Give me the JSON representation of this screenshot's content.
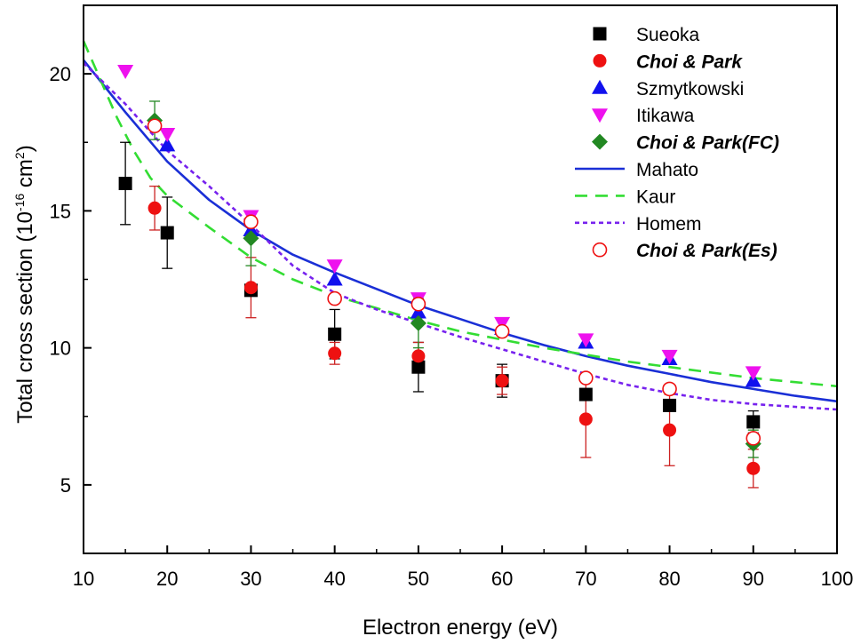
{
  "chart_data": {
    "type": "scatter",
    "title": "",
    "xlabel": "Electron energy (eV)",
    "ylabel_parts": {
      "main": "Total cross section (10",
      "exp1": "-16",
      "mid": " cm",
      "exp2": "2",
      "end": ")"
    },
    "xlim": [
      10,
      100
    ],
    "ylim": [
      2.5,
      22.5
    ],
    "xticks": [
      10,
      20,
      30,
      40,
      50,
      60,
      70,
      80,
      90,
      100
    ],
    "yticks": [
      5,
      10,
      15,
      20
    ],
    "legend_position": "top-right",
    "colors": {
      "black": "#000000",
      "red": "#ee1111",
      "blue": "#1111ee",
      "magenta": "#ee11ee",
      "green": "#228822",
      "mahato": "#1a2fd6",
      "kaur": "#33dd33",
      "homem": "#7722ee",
      "es": "#ee1111",
      "errblack": "#000000",
      "errred": "#cc2222",
      "errgreen": "#228822"
    },
    "series": [
      {
        "name": "Sueoka",
        "kind": "points",
        "marker": "square",
        "color": "#000000",
        "bold": false,
        "points": [
          {
            "x": 15,
            "y": 16.0,
            "err": 1.5
          },
          {
            "x": 20,
            "y": 14.2,
            "err": 1.3
          },
          {
            "x": 30,
            "y": 12.1,
            "err": 0
          },
          {
            "x": 40,
            "y": 10.5,
            "err": 0.9
          },
          {
            "x": 50,
            "y": 9.3,
            "err": 0.9
          },
          {
            "x": 60,
            "y": 8.8,
            "err": 0.6
          },
          {
            "x": 70,
            "y": 8.3,
            "err": 0
          },
          {
            "x": 80,
            "y": 7.9,
            "err": 0
          },
          {
            "x": 90,
            "y": 7.3,
            "err": 0.4
          }
        ]
      },
      {
        "name": "Choi & Park",
        "kind": "points",
        "marker": "circle",
        "color": "#ee1111",
        "bold": true,
        "errColor": "#cc2222",
        "points": [
          {
            "x": 18.5,
            "y": 15.1,
            "err": 0.8
          },
          {
            "x": 30,
            "y": 12.2,
            "err": 1.1
          },
          {
            "x": 40,
            "y": 9.8,
            "err": 0.4
          },
          {
            "x": 50,
            "y": 9.7,
            "err": 0.5
          },
          {
            "x": 60,
            "y": 8.8,
            "err": 0.5
          },
          {
            "x": 70,
            "y": 7.4,
            "err": 1.4
          },
          {
            "x": 80,
            "y": 7.0,
            "err": 1.3
          },
          {
            "x": 90,
            "y": 5.6,
            "err": 0.7
          }
        ]
      },
      {
        "name": "Szmytkowski",
        "kind": "points",
        "marker": "triangle-up",
        "color": "#1111ee",
        "bold": false,
        "points": [
          {
            "x": 20,
            "y": 17.4,
            "err": 0
          },
          {
            "x": 30,
            "y": 14.3,
            "err": 0
          },
          {
            "x": 40,
            "y": 12.5,
            "err": 0
          },
          {
            "x": 50,
            "y": 11.3,
            "err": 0
          },
          {
            "x": 60,
            "y": 10.7,
            "err": 0
          },
          {
            "x": 70,
            "y": 10.2,
            "err": 0
          },
          {
            "x": 80,
            "y": 9.6,
            "err": 0
          },
          {
            "x": 90,
            "y": 8.8,
            "err": 0
          }
        ]
      },
      {
        "name": "Itikawa",
        "kind": "points",
        "marker": "triangle-down",
        "color": "#ee11ee",
        "bold": false,
        "points": [
          {
            "x": 15,
            "y": 20.1,
            "err": 0
          },
          {
            "x": 20,
            "y": 17.8,
            "err": 0
          },
          {
            "x": 30,
            "y": 14.8,
            "err": 0
          },
          {
            "x": 40,
            "y": 13.0,
            "err": 0
          },
          {
            "x": 50,
            "y": 11.8,
            "err": 0
          },
          {
            "x": 60,
            "y": 10.9,
            "err": 0
          },
          {
            "x": 70,
            "y": 10.3,
            "err": 0
          },
          {
            "x": 80,
            "y": 9.7,
            "err": 0
          },
          {
            "x": 90,
            "y": 9.1,
            "err": 0
          }
        ]
      },
      {
        "name": "Choi & Park(FC)",
        "kind": "points",
        "marker": "diamond",
        "color": "#228822",
        "bold": true,
        "errColor": "#228822",
        "points": [
          {
            "x": 18.5,
            "y": 18.3,
            "err": 0.7
          },
          {
            "x": 30,
            "y": 14.0,
            "err": 1.0
          },
          {
            "x": 50,
            "y": 10.9,
            "err": 0.9
          },
          {
            "x": 90,
            "y": 6.5,
            "err": 0.5
          }
        ]
      },
      {
        "name": "Mahato",
        "kind": "line",
        "dash": "solid",
        "color": "#1a2fd6",
        "bold": false,
        "points": [
          [
            10,
            20.5
          ],
          [
            15,
            18.6
          ],
          [
            20,
            16.8
          ],
          [
            25,
            15.4
          ],
          [
            30,
            14.3
          ],
          [
            35,
            13.4
          ],
          [
            40,
            12.75
          ],
          [
            45,
            12.15
          ],
          [
            50,
            11.55
          ],
          [
            55,
            11.05
          ],
          [
            60,
            10.55
          ],
          [
            65,
            10.1
          ],
          [
            70,
            9.7
          ],
          [
            75,
            9.35
          ],
          [
            80,
            9.05
          ],
          [
            85,
            8.75
          ],
          [
            90,
            8.5
          ],
          [
            95,
            8.25
          ],
          [
            100,
            8.05
          ]
        ]
      },
      {
        "name": "Kaur",
        "kind": "line",
        "dash": "dash",
        "color": "#33dd33",
        "bold": false,
        "points": [
          [
            10,
            21.2
          ],
          [
            12,
            19.8
          ],
          [
            14,
            18.4
          ],
          [
            16,
            17.2
          ],
          [
            18,
            16.2
          ],
          [
            20,
            15.55
          ],
          [
            25,
            14.4
          ],
          [
            30,
            13.3
          ],
          [
            35,
            12.5
          ],
          [
            40,
            11.9
          ],
          [
            45,
            11.45
          ],
          [
            50,
            11.0
          ],
          [
            55,
            10.6
          ],
          [
            60,
            10.3
          ],
          [
            65,
            10.0
          ],
          [
            70,
            9.75
          ],
          [
            75,
            9.5
          ],
          [
            80,
            9.3
          ],
          [
            85,
            9.1
          ],
          [
            90,
            8.9
          ],
          [
            95,
            8.75
          ],
          [
            100,
            8.6
          ]
        ]
      },
      {
        "name": "Homem",
        "kind": "line",
        "dash": "dot",
        "color": "#7722ee",
        "bold": false,
        "points": [
          [
            10,
            20.4
          ],
          [
            15,
            18.9
          ],
          [
            20,
            17.2
          ],
          [
            25,
            15.9
          ],
          [
            30,
            14.5
          ],
          [
            35,
            13.0
          ],
          [
            40,
            12.0
          ],
          [
            45,
            11.4
          ],
          [
            50,
            10.9
          ],
          [
            55,
            10.4
          ],
          [
            60,
            9.95
          ],
          [
            65,
            9.5
          ],
          [
            70,
            9.05
          ],
          [
            75,
            8.65
          ],
          [
            80,
            8.35
          ],
          [
            85,
            8.1
          ],
          [
            90,
            7.95
          ],
          [
            95,
            7.85
          ],
          [
            100,
            7.75
          ]
        ]
      },
      {
        "name": "Choi & Park(Es)",
        "kind": "points",
        "marker": "open-circle",
        "color": "#ee1111",
        "bold": true,
        "points": [
          {
            "x": 18.5,
            "y": 18.1,
            "err": 0
          },
          {
            "x": 30,
            "y": 14.6,
            "err": 0
          },
          {
            "x": 40,
            "y": 11.8,
            "err": 0
          },
          {
            "x": 50,
            "y": 11.6,
            "err": 0
          },
          {
            "x": 60,
            "y": 10.6,
            "err": 0
          },
          {
            "x": 70,
            "y": 8.9,
            "err": 0
          },
          {
            "x": 80,
            "y": 8.5,
            "err": 0
          },
          {
            "x": 90,
            "y": 6.7,
            "err": 0
          }
        ]
      }
    ]
  }
}
